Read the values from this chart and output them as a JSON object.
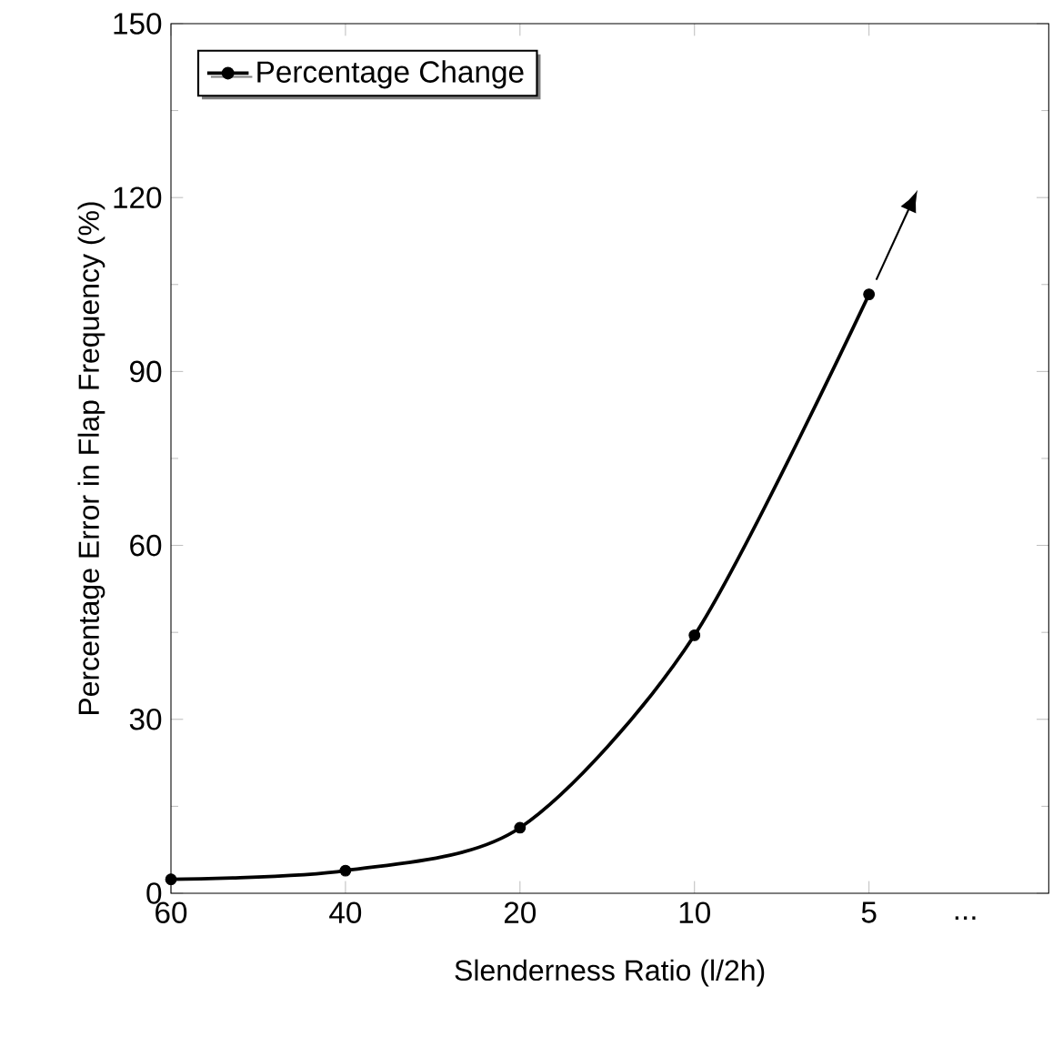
{
  "chart_data": {
    "type": "line",
    "xlabel": "Slenderness Ratio (l/2h)",
    "ylabel": "Percentage Error in Flap Frequency (%)",
    "categories": [
      "60",
      "40",
      "20",
      "10",
      "5"
    ],
    "series": [
      {
        "name": "Percentage Change",
        "color": "#000000",
        "values": [
          2.4,
          3.9,
          11.3,
          44.5,
          103.3
        ]
      }
    ],
    "ylim": [
      0,
      150
    ],
    "yticks": [
      0,
      30,
      60,
      90,
      120,
      150
    ],
    "annotations": [
      "..."
    ],
    "legend": "top left",
    "marker": "circle",
    "line_style": "solid",
    "grid": false
  }
}
